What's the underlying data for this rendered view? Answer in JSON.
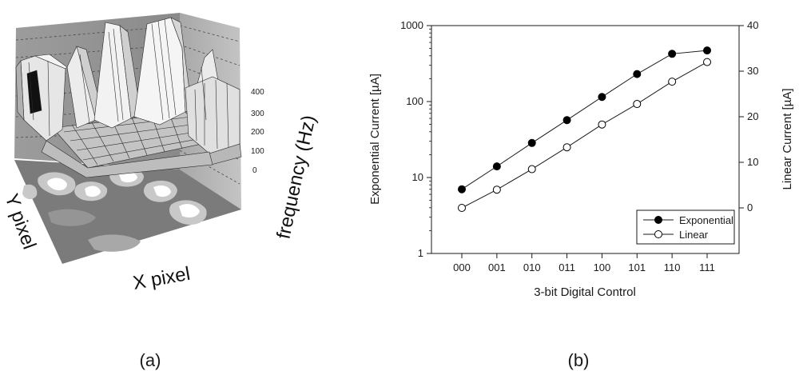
{
  "panel_labels": {
    "a": "(a)",
    "b": "(b)"
  },
  "chart_data": [
    {
      "type": "surface3d",
      "title": "",
      "xlabel": "X pixel",
      "ylabel": "Y pixel",
      "zlabel": "frequency (Hz)",
      "z_ticks": [
        "400",
        "300",
        "200",
        "100",
        "0"
      ]
    },
    {
      "type": "line",
      "title": "",
      "xlabel": "3-bit Digital Control",
      "ylabel": "Exponential Current [µA]",
      "y2label": "Linear Current [µA]",
      "categories": [
        "000",
        "001",
        "010",
        "011",
        "100",
        "101",
        "110",
        "111"
      ],
      "y_scale": "log",
      "ylim": [
        1,
        1000
      ],
      "y_ticks": [
        "1",
        "10",
        "100",
        "1000"
      ],
      "y2lim": [
        -10,
        40
      ],
      "y2_ticks": [
        "0",
        "10",
        "20",
        "30",
        "40"
      ],
      "legend_position": "bottom-right",
      "series": [
        {
          "name": "Exponential",
          "axis": "left",
          "marker": "filled-circle",
          "values": [
            7,
            14,
            28.5,
            57,
            115,
            230,
            425,
            470
          ]
        },
        {
          "name": "Linear",
          "axis": "right",
          "marker": "open-circle",
          "values": [
            0,
            4,
            8.5,
            13.3,
            18.3,
            22.8,
            27.7,
            32
          ]
        }
      ]
    }
  ]
}
